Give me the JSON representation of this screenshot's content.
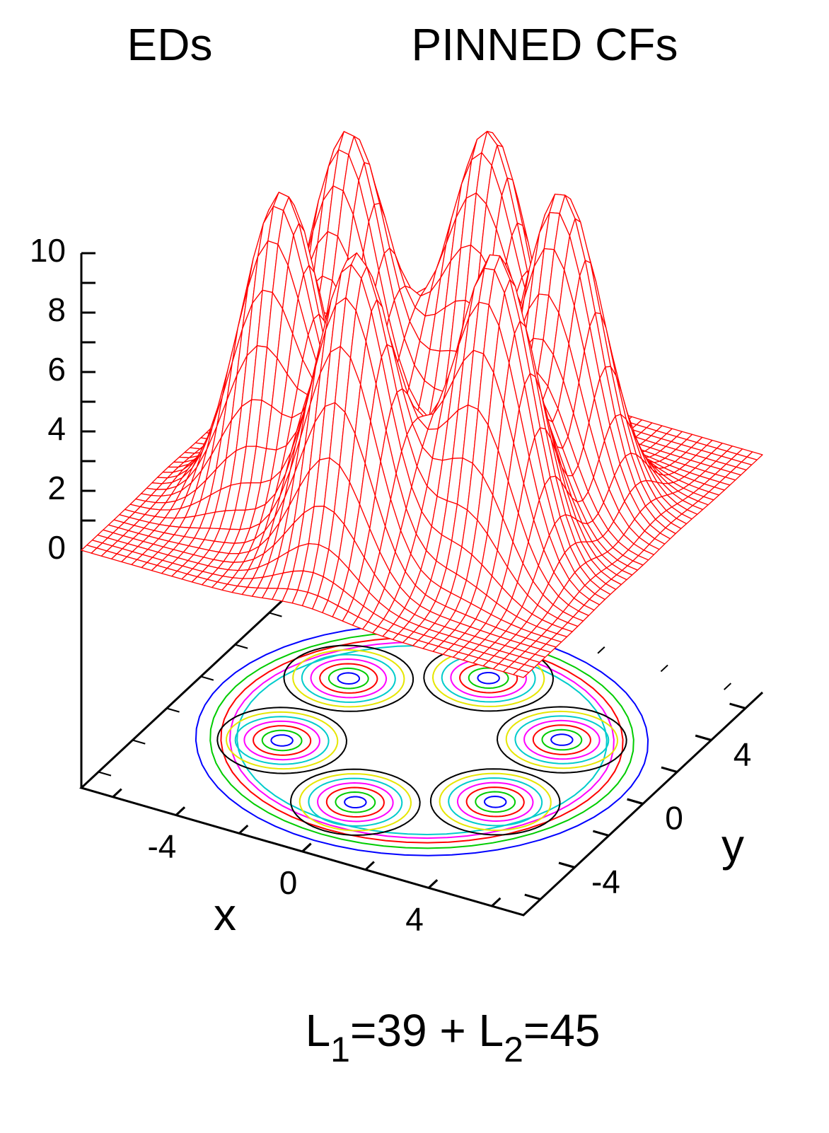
{
  "chart_data": {
    "type": "surface",
    "titles": [
      "EDs",
      "PINNED CFs"
    ],
    "xlabel": "x",
    "ylabel": "y",
    "xlim": [
      -7,
      7
    ],
    "ylim": [
      -7,
      7
    ],
    "zlim": [
      -8,
      10
    ],
    "xticks": [
      -4,
      0,
      4
    ],
    "yticks": [
      -4,
      0,
      4
    ],
    "zticks": [
      0,
      2,
      4,
      6,
      8,
      10
    ],
    "surface_color": "#ff0000",
    "contour_colors": [
      "#0000ff",
      "#00cc00",
      "#ff0000",
      "#ff00ff",
      "#00cccc",
      "#e6e600",
      "#000000"
    ],
    "annotation": {
      "parts": [
        "L",
        "1",
        "=39 + L",
        "2",
        "=45"
      ]
    }
  }
}
